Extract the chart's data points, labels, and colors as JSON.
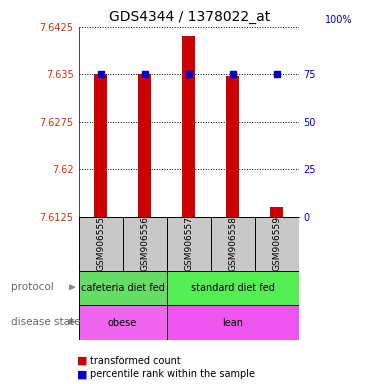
{
  "title": "GDS4344 / 1378022_at",
  "samples": [
    "GSM906555",
    "GSM906556",
    "GSM906557",
    "GSM906558",
    "GSM906559"
  ],
  "red_values": [
    7.635,
    7.635,
    7.641,
    7.6348,
    7.614
  ],
  "blue_values": [
    7.635,
    7.635,
    7.635,
    7.635,
    7.635
  ],
  "ymin": 7.6125,
  "ymax": 7.6425,
  "yticks": [
    7.6125,
    7.62,
    7.6275,
    7.635,
    7.6425
  ],
  "ytick_labels": [
    "7.6125",
    "7.62",
    "7.6275",
    "7.635",
    "7.6425"
  ],
  "right_yticks": [
    0,
    25,
    50,
    75
  ],
  "right_ytick_labels": [
    "0",
    "25",
    "50",
    "75"
  ],
  "bar_color": "#cc0000",
  "dot_color": "#0000cc",
  "left_axis_color": "#cc3300",
  "right_axis_color": "#0000cc",
  "prot_spans": [
    [
      -0.5,
      1.5,
      "cafeteria diet fed",
      "#66dd66"
    ],
    [
      1.5,
      4.5,
      "standard diet fed",
      "#55ee55"
    ]
  ],
  "dis_spans": [
    [
      -0.5,
      1.5,
      "obese",
      "#ee66ee"
    ],
    [
      1.5,
      4.5,
      "lean",
      "#ee55ee"
    ]
  ]
}
